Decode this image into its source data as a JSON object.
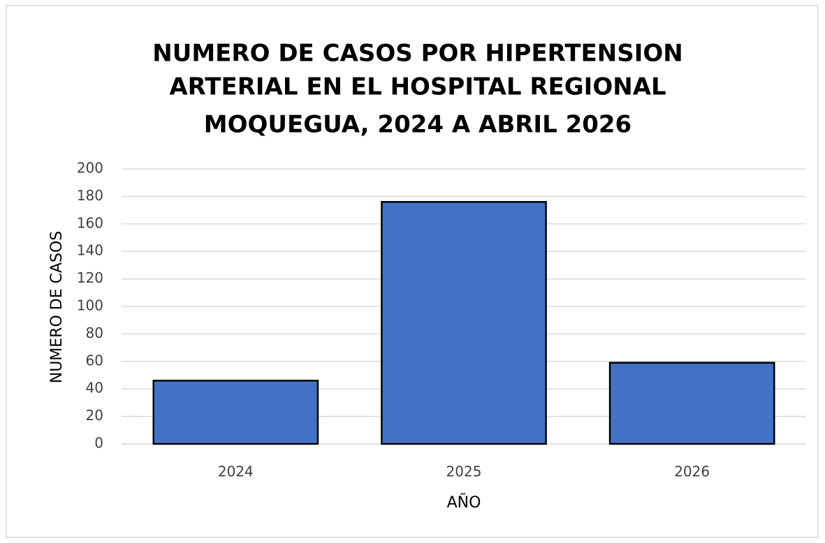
{
  "chart_data": {
    "type": "bar",
    "title": [
      "NUMERO DE CASOS POR HIPERTENSION",
      "ARTERIAL EN EL HOSPITAL REGIONAL",
      "MOQUEGUA, 2024 A ABRIL 2026"
    ],
    "x_label": "AÑO",
    "y_label": "NUMERO DE CASOS",
    "categories": [
      "2024",
      "2025",
      "2026"
    ],
    "values": [
      46,
      176,
      59
    ],
    "color": "#4472c4",
    "ylim": [
      0,
      200
    ],
    "yticks": [
      0,
      20,
      40,
      60,
      80,
      100,
      120,
      140,
      160,
      180,
      200
    ],
    "grid": true
  }
}
